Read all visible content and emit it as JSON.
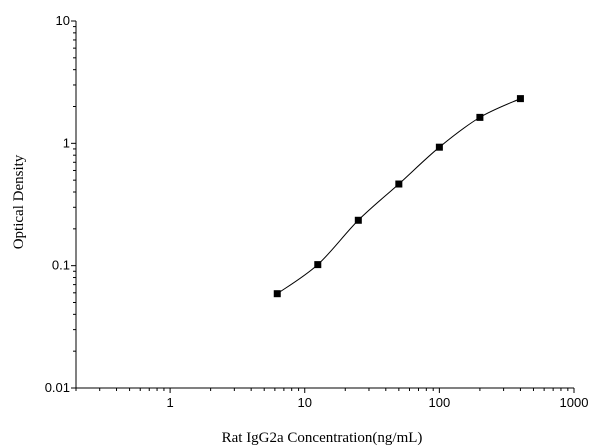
{
  "chart_data": {
    "type": "scatter",
    "xlabel": "Rat IgG2a Concentration(ng/mL)",
    "ylabel": "Optical Density",
    "xscale": "log",
    "yscale": "log",
    "xlim": [
      0.2,
      1000
    ],
    "ylim": [
      0.01,
      10
    ],
    "xticks": [
      {
        "value": 1,
        "label": "1"
      },
      {
        "value": 10,
        "label": "10"
      },
      {
        "value": 100,
        "label": "100"
      },
      {
        "value": 1000,
        "label": "1000"
      }
    ],
    "yticks": [
      {
        "value": 0.01,
        "label": "0.01"
      },
      {
        "value": 0.1,
        "label": "0.1"
      },
      {
        "value": 1,
        "label": "1"
      },
      {
        "value": 10,
        "label": "10"
      }
    ],
    "grid": false,
    "series": [
      {
        "marker": "square",
        "fit_line": true,
        "color": "#000000",
        "points": [
          {
            "x": 6.25,
            "y": 0.059
          },
          {
            "x": 12.5,
            "y": 0.102
          },
          {
            "x": 25,
            "y": 0.235
          },
          {
            "x": 50,
            "y": 0.465
          },
          {
            "x": 100,
            "y": 0.93
          },
          {
            "x": 200,
            "y": 1.63
          },
          {
            "x": 400,
            "y": 2.32
          }
        ]
      }
    ]
  }
}
